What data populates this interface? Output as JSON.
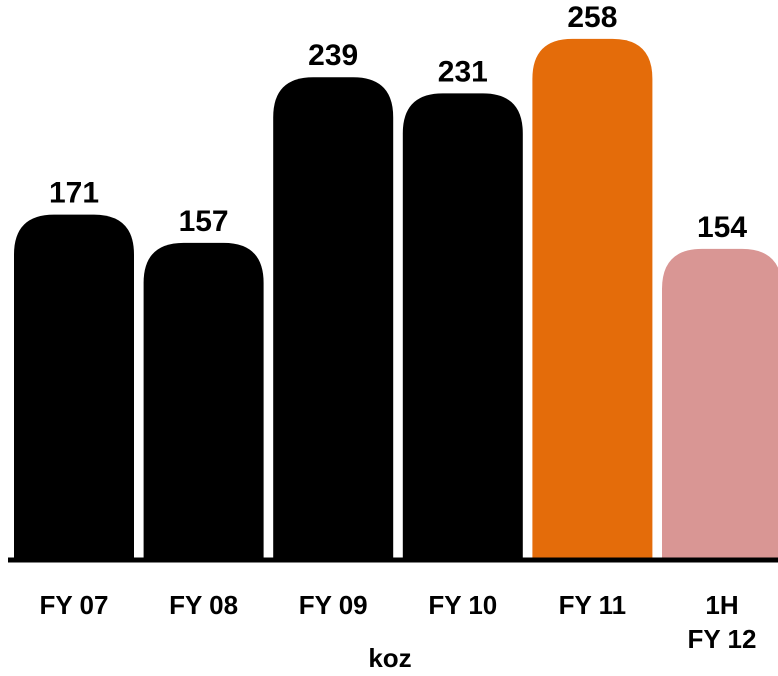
{
  "chart_data": {
    "type": "bar",
    "categories": [
      "FY 07",
      "FY 08",
      "FY 09",
      "FY 10",
      "FY 11",
      "1H FY 12"
    ],
    "category_lines": [
      [
        "FY 07"
      ],
      [
        "FY 08"
      ],
      [
        "FY 09"
      ],
      [
        "FY 10"
      ],
      [
        "FY 11"
      ],
      [
        "1H",
        "FY 12"
      ]
    ],
    "values": [
      171,
      157,
      239,
      231,
      258,
      154
    ],
    "value_labels": [
      "171",
      "157",
      "239",
      "231",
      "258",
      "154"
    ],
    "bar_colors": [
      "#000000",
      "#000000",
      "#000000",
      "#000000",
      "#e46c0a",
      "#d99694"
    ],
    "title": "",
    "xlabel": "koz",
    "ylabel": "",
    "ylim": [
      0,
      280
    ],
    "grid": false,
    "legend": "none"
  }
}
